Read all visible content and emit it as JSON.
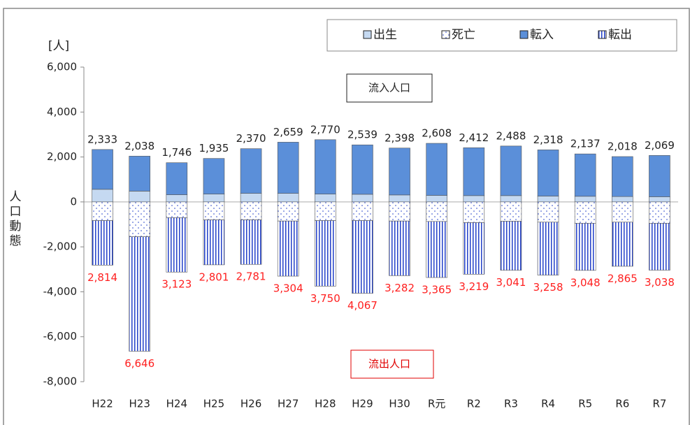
{
  "chart_data": {
    "type": "stacked-bar",
    "unit_label": "[人]",
    "y_label": "人口動態",
    "annotations": [
      "流入人口",
      "流出人口"
    ],
    "categories": [
      "H22",
      "H23",
      "H24",
      "H25",
      "H26",
      "H27",
      "H28",
      "H29",
      "H30",
      "R元",
      "R2",
      "R3",
      "R4",
      "R5",
      "R6",
      "R7"
    ],
    "series": [
      {
        "name": "出生",
        "color": "#c5d9f1",
        "values": [
          560,
          480,
          320,
          350,
          380,
          380,
          350,
          340,
          310,
          290,
          280,
          280,
          260,
          250,
          240,
          230
        ]
      },
      {
        "name": "死亡",
        "color": "#ffffff",
        "values": [
          -830,
          -1550,
          -700,
          -800,
          -800,
          -850,
          -830,
          -830,
          -850,
          -870,
          -920,
          -860,
          -900,
          -950,
          -900,
          -950
        ]
      },
      {
        "name": "転入",
        "color": "#5b8fd9",
        "values": [
          1773,
          1558,
          1426,
          1585,
          1990,
          2279,
          2420,
          2199,
          2088,
          2318,
          2132,
          2208,
          2058,
          1887,
          1778,
          1839
        ]
      },
      {
        "name": "転出",
        "color": "#2340c8",
        "values": [
          -1984,
          -5096,
          -2423,
          -2001,
          -1981,
          -2454,
          -2920,
          -3237,
          -2432,
          -2495,
          -2299,
          -2181,
          -2358,
          -2098,
          -1965,
          -2088
        ]
      }
    ],
    "inflow_total": {
      "values": [
        2333,
        2038,
        1746,
        1935,
        2370,
        2659,
        2770,
        2539,
        2398,
        2608,
        2412,
        2488,
        2318,
        2137,
        2018,
        2069
      ],
      "value_labels": [
        "2,333",
        "2,038",
        "1,746",
        "1,935",
        "2,370",
        "2,659",
        "2,770",
        "2,539",
        "2,398",
        "2,608",
        "2,412",
        "2,488",
        "2,318",
        "2,137",
        "2,018",
        "2,069"
      ]
    },
    "outflow_total": {
      "values": [
        2814,
        6646,
        3123,
        2801,
        2781,
        3304,
        3750,
        4067,
        3282,
        3365,
        3219,
        3041,
        3258,
        3048,
        2865,
        3038
      ],
      "value_labels": [
        "2,814",
        "6,646",
        "3,123",
        "2,801",
        "2,781",
        "3,304",
        "3,750",
        "4,067",
        "3,282",
        "3,365",
        "3,219",
        "3,041",
        "3,258",
        "3,048",
        "2,865",
        "3,038"
      ],
      "color": "#ff2020"
    },
    "ylim": [
      -8000,
      6000
    ],
    "yticks": [
      {
        "value": -8000,
        "label": "-8,000"
      },
      {
        "value": -6000,
        "label": "-6,000"
      },
      {
        "value": -4000,
        "label": "-4,000"
      },
      {
        "value": -2000,
        "label": "-2,000"
      },
      0,
      {
        "value": 2000,
        "label": "2,000"
      },
      {
        "value": 4000,
        "label": "4,000"
      },
      {
        "value": 6000,
        "label": "6,000"
      }
    ],
    "legend": "top-right"
  }
}
